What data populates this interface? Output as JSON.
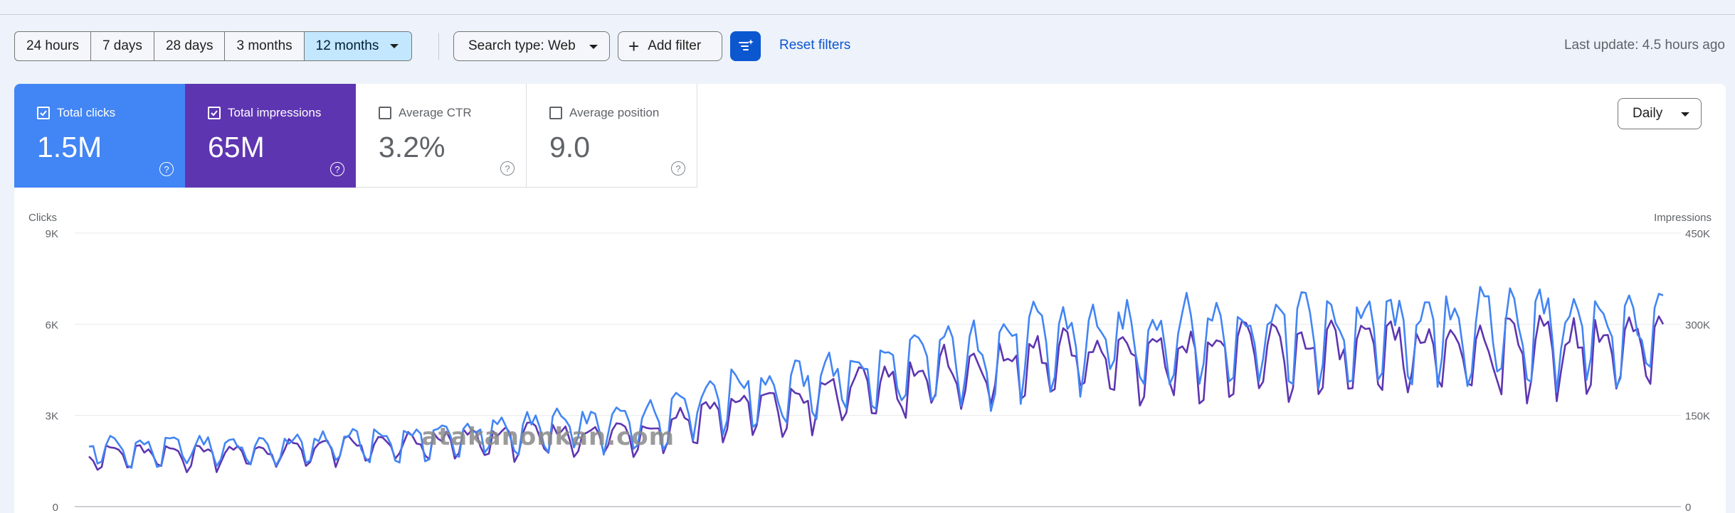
{
  "toolbar": {
    "ranges": [
      "24 hours",
      "7 days",
      "28 days",
      "3 months",
      "12 months"
    ],
    "search_type": "Search type: Web",
    "add_filter": "Add filter",
    "reset_filters": "Reset filters",
    "last_update": "Last update: 4.5 hours ago"
  },
  "metrics": {
    "clicks": {
      "label": "Total clicks",
      "value": "1.5M",
      "checked": true,
      "color": "#4285f4"
    },
    "impressions": {
      "label": "Total impressions",
      "value": "65M",
      "checked": true,
      "color": "#5e35b1"
    },
    "ctr": {
      "label": "Average CTR",
      "value": "3.2%",
      "checked": false
    },
    "position": {
      "label": "Average position",
      "value": "9.0",
      "checked": false
    }
  },
  "granularity": "Daily",
  "watermark": "atakanonkan.com",
  "chart_data": {
    "type": "line",
    "left_axis_label": "Clicks",
    "right_axis_label": "Impressions",
    "left_ticks": [
      "0",
      "3K",
      "6K",
      "9K"
    ],
    "right_ticks": [
      "0",
      "150K",
      "300K",
      "450K"
    ],
    "left_ylim": [
      0,
      9000
    ],
    "right_ylim": [
      0,
      450000
    ],
    "grid": true,
    "series": [
      {
        "name": "Total clicks",
        "axis": "left",
        "color": "#4285f4",
        "weekly_trend": [
          1900,
          1850,
          1800,
          1850,
          1900,
          1900,
          1800,
          1950,
          2000,
          2050,
          2050,
          2150,
          2250,
          2300,
          2400,
          2500,
          2550,
          2550,
          2700,
          2850,
          3300,
          3600,
          3750,
          3700,
          3850,
          4200,
          4300,
          4300,
          4600,
          4800,
          4850,
          5150,
          5300,
          5350,
          5400,
          5400,
          5500,
          5600,
          5550,
          5600,
          5700,
          5650,
          5500,
          5600,
          5600,
          5600,
          5650,
          5700,
          5800,
          5700,
          5700,
          5650,
          5600
        ],
        "daily_amplitude": 0.22
      },
      {
        "name": "Total impressions",
        "axis": "right",
        "color": "#5e35b1",
        "weekly_trend": [
          82000,
          84000,
          82000,
          83000,
          85000,
          87000,
          85000,
          90000,
          92000,
          95000,
          95000,
          100000,
          103000,
          106000,
          110000,
          112000,
          113000,
          113000,
          118000,
          122000,
          138000,
          150000,
          158000,
          158000,
          165000,
          180000,
          190000,
          195000,
          205000,
          215000,
          215000,
          225000,
          232000,
          235000,
          237000,
          238000,
          240000,
          244000,
          243000,
          244000,
          245000,
          246000,
          242000,
          245000,
          247000,
          248000,
          250000,
          252000,
          256000,
          255000,
          255000,
          253000,
          252000
        ],
        "daily_amplitude": 0.2
      }
    ]
  }
}
